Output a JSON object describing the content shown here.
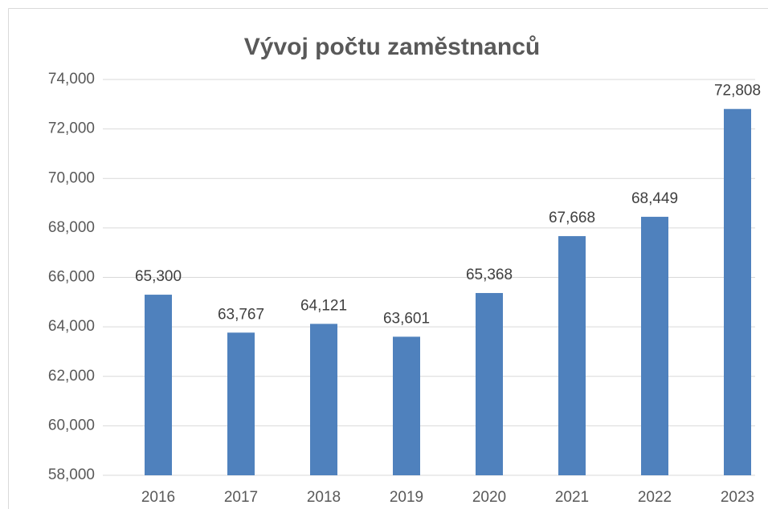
{
  "chart_data": {
    "type": "bar",
    "title": "Vývoj počtu zaměstnanců",
    "categories": [
      "2016",
      "2017",
      "2018",
      "2019",
      "2020",
      "2021",
      "2022",
      "2023"
    ],
    "values": [
      65300,
      63767,
      64121,
      63601,
      65368,
      67668,
      68449,
      72808
    ],
    "value_labels": [
      "65,300",
      "63,767",
      "64,121",
      "63,601",
      "65,368",
      "67,668",
      "68,449",
      "72,808"
    ],
    "color": "#4f81bd",
    "ylim": [
      58000,
      74000
    ],
    "yticks": [
      {
        "value": 58000,
        "label": "58,000"
      },
      {
        "value": 60000,
        "label": "60,000"
      },
      {
        "value": 62000,
        "label": "62,000"
      },
      {
        "value": 64000,
        "label": "64,000"
      },
      {
        "value": 66000,
        "label": "66,000"
      },
      {
        "value": 68000,
        "label": "68,000"
      },
      {
        "value": 70000,
        "label": "70,000"
      },
      {
        "value": 72000,
        "label": "72,000"
      },
      {
        "value": 74000,
        "label": "74,000"
      }
    ],
    "grid": true
  }
}
